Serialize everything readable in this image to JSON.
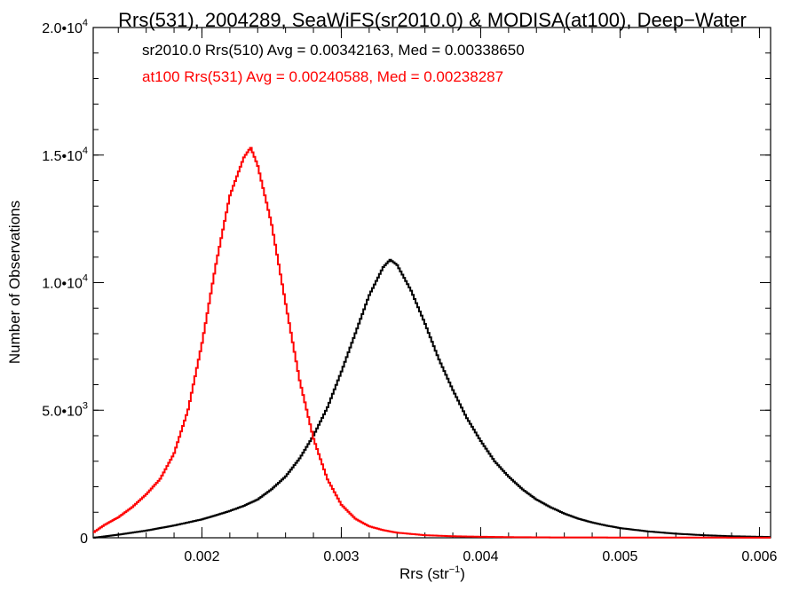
{
  "chart_data": {
    "type": "line",
    "title": "Rrs(531), 2004289, SeaWiFS(sr2010.0) & MODISA(at100), Deep−Water",
    "xlabel": {
      "main": "Rrs (str",
      "sup": "−1",
      "close": ")"
    },
    "ylabel": "Number of Observations",
    "xlim": [
      0.00122,
      0.00608
    ],
    "ylim": [
      0,
      20000
    ],
    "x_ticks": [
      {
        "value": 0.002,
        "label": "0.002"
      },
      {
        "value": 0.003,
        "label": "0.003"
      },
      {
        "value": 0.004,
        "label": "0.004"
      },
      {
        "value": 0.005,
        "label": "0.005"
      },
      {
        "value": 0.006,
        "label": "0.006"
      }
    ],
    "y_ticks": [
      {
        "value": 0,
        "label": "0",
        "sup": ""
      },
      {
        "value": 5000,
        "label": "5.0•10",
        "sup": "3"
      },
      {
        "value": 10000,
        "label": "1.0•10",
        "sup": "4"
      },
      {
        "value": 15000,
        "label": "1.5•10",
        "sup": "4"
      },
      {
        "value": 20000,
        "label": "2.0•10",
        "sup": "4"
      }
    ],
    "annotations": [
      {
        "text": "sr2010.0 Rrs(510) Avg = 0.00342163, Med = 0.00338650",
        "color": "#000000"
      },
      {
        "text": "at100 Rrs(531) Avg = 0.00240588, Med = 0.00238287",
        "color": "#ff0000"
      }
    ],
    "series": [
      {
        "color": "#000000",
        "style": "step",
        "x": [
          0.00122,
          0.0013,
          0.0014,
          0.0015,
          0.0016,
          0.0017,
          0.0018,
          0.0019,
          0.002,
          0.0021,
          0.0022,
          0.0023,
          0.0024,
          0.0025,
          0.0026,
          0.0027,
          0.0028,
          0.0029,
          0.003,
          0.0031,
          0.0032,
          0.0033,
          0.00335,
          0.0034,
          0.0035,
          0.0036,
          0.0037,
          0.0038,
          0.0039,
          0.004,
          0.0041,
          0.0042,
          0.0043,
          0.0044,
          0.0045,
          0.0046,
          0.0047,
          0.0048,
          0.0049,
          0.005,
          0.0052,
          0.0054,
          0.0056,
          0.0058,
          0.00608
        ],
        "y": [
          0,
          50,
          120,
          200,
          280,
          380,
          480,
          600,
          720,
          880,
          1050,
          1250,
          1500,
          1900,
          2400,
          3100,
          4000,
          5100,
          6500,
          8000,
          9500,
          10600,
          10900,
          10700,
          9700,
          8400,
          7000,
          5800,
          4700,
          3800,
          3000,
          2400,
          1900,
          1500,
          1200,
          950,
          750,
          600,
          480,
          380,
          250,
          160,
          100,
          60,
          30
        ]
      },
      {
        "color": "#ff0000",
        "style": "step",
        "x": [
          0.00122,
          0.0013,
          0.0014,
          0.0015,
          0.0016,
          0.0017,
          0.0018,
          0.0019,
          0.002,
          0.0021,
          0.0022,
          0.0023,
          0.00235,
          0.0024,
          0.0025,
          0.0026,
          0.0027,
          0.0028,
          0.0029,
          0.003,
          0.0031,
          0.0032,
          0.0033,
          0.0034,
          0.0035,
          0.0036,
          0.0038,
          0.004,
          0.0042,
          0.0045,
          0.005,
          0.00608
        ],
        "y": [
          200,
          500,
          800,
          1200,
          1700,
          2300,
          3300,
          5000,
          7600,
          10700,
          13400,
          14900,
          15300,
          14600,
          12300,
          9200,
          6200,
          3900,
          2300,
          1300,
          750,
          450,
          300,
          200,
          150,
          100,
          60,
          40,
          25,
          15,
          10,
          5
        ]
      }
    ]
  }
}
